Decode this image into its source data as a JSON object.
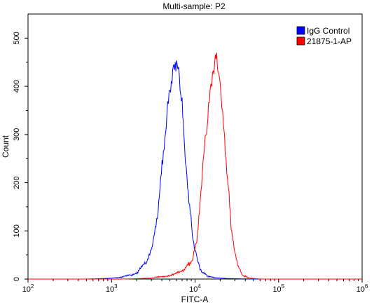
{
  "chart_data": {
    "type": "line",
    "title": "Multi-sample: P2",
    "xlabel": "FITC-A",
    "ylabel": "Count",
    "x_scale": "log",
    "xlim": [
      100,
      1000000
    ],
    "ylim": [
      0,
      550
    ],
    "grid": false,
    "legend_position": "top-right",
    "x_ticks": [
      {
        "value": 100,
        "base": "10",
        "exp": "2"
      },
      {
        "value": 1000,
        "base": "10",
        "exp": "3"
      },
      {
        "value": 10000,
        "base": "10",
        "exp": "4"
      },
      {
        "value": 100000,
        "base": "10",
        "exp": "5"
      },
      {
        "value": 1000000,
        "base": "10",
        "exp": "6"
      }
    ],
    "y_ticks": [
      0,
      100,
      200,
      300,
      400,
      500
    ],
    "series": [
      {
        "name": "IgG Control",
        "color": "#0000ff",
        "x": [
          100,
          500,
          800,
          1000,
          1300,
          1700,
          2100,
          2600,
          3100,
          3600,
          4100,
          4600,
          5100,
          5500,
          6000,
          6500,
          7000,
          7500,
          8000,
          8600,
          9300,
          10000,
          10800,
          11500,
          12500,
          14000,
          17000,
          25000,
          50000,
          1000000
        ],
        "values": [
          0,
          0,
          1,
          2,
          4,
          8,
          16,
          35,
          70,
          140,
          250,
          340,
          400,
          440,
          445,
          420,
          360,
          270,
          210,
          150,
          95,
          60,
          38,
          22,
          12,
          7,
          3,
          1,
          0,
          0
        ]
      },
      {
        "name": "21875-1-AP",
        "color": "#ff0000",
        "x": [
          100,
          1500,
          3000,
          5000,
          6500,
          7500,
          8500,
          9500,
          10500,
          11500,
          12500,
          13500,
          14500,
          15500,
          16500,
          17500,
          18500,
          19500,
          21000,
          23000,
          25000,
          27000,
          30000,
          33000,
          36000,
          40000,
          45000,
          60000,
          1000000
        ],
        "values": [
          0,
          0,
          2,
          8,
          14,
          20,
          32,
          45,
          80,
          160,
          240,
          300,
          350,
          400,
          430,
          455,
          450,
          420,
          360,
          270,
          190,
          110,
          55,
          25,
          12,
          5,
          2,
          0,
          0
        ]
      }
    ]
  }
}
